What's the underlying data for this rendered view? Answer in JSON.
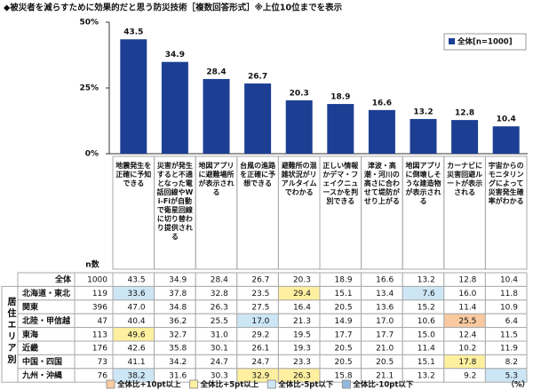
{
  "chart_data": {
    "type": "bar",
    "title": "◆被災者を減らすために効果的だと思う防災技術［複数回答形式］※上位10位までを表示",
    "categories": [
      "地震発生を正確に予知できる",
      "災害が発生すると不通となった電話回線やWi-Fiが自動で衛星回線に切り替わり提供される",
      "地図アプリに避難場所が表示される",
      "台風の進路を正確に予想できる",
      "避難所の混雑状況がリアルタイムでわかる",
      "正しい情報かデマ・フェイクニュースかを判別できる",
      "津波・高潮・河川の高さに合わせて堤防がせり上がる",
      "地図アプリに倒壊しそうな建造物が表示される",
      "カーナビに災害回避ルートが表示される",
      "宇宙からのモニタリングによって災害発生確率がわかる"
    ],
    "series": [
      {
        "name": "全体[n=1000]",
        "color": "#1c3f94",
        "values": [
          43.5,
          34.9,
          28.4,
          26.7,
          20.3,
          18.9,
          16.6,
          13.2,
          12.8,
          10.4
        ]
      }
    ],
    "ylim": [
      0,
      50
    ],
    "yticks": [
      {
        "value": 0,
        "label": "0%"
      },
      {
        "value": 25,
        "label": "25%"
      },
      {
        "value": 50,
        "label": "50%"
      }
    ],
    "legend": "top-right"
  },
  "table": {
    "n_header": "n数",
    "group_label": "居住エリア別",
    "unit": "（%）",
    "legend": [
      {
        "label": "全体比+10pt以上",
        "color": "#f9c9a0"
      },
      {
        "label": "全体比+5pt以上",
        "color": "#fff0a0"
      },
      {
        "label": "全体比-5pt以下",
        "color": "#cde6f6"
      },
      {
        "label": "全体比-10pt以下",
        "color": "#8fb8e0"
      }
    ],
    "rows": [
      {
        "label": "全体",
        "n": 1000,
        "values": [
          "43.5",
          "34.9",
          "28.4",
          "26.7",
          "20.3",
          "18.9",
          "16.6",
          "13.2",
          "12.8",
          "10.4"
        ],
        "colors": [
          null,
          null,
          null,
          null,
          null,
          null,
          null,
          null,
          null,
          null
        ]
      },
      {
        "label": "北海道・東北",
        "n": 119,
        "values": [
          "33.6",
          "37.8",
          "32.8",
          "23.5",
          "29.4",
          "15.1",
          "13.4",
          "7.6",
          "16.0",
          "11.8"
        ],
        "colors": [
          "#cde6f6",
          null,
          null,
          null,
          "#fff0a0",
          null,
          null,
          "#cde6f6",
          null,
          null
        ]
      },
      {
        "label": "関東",
        "n": 396,
        "values": [
          "47.0",
          "34.8",
          "26.3",
          "27.5",
          "16.4",
          "20.5",
          "13.6",
          "15.2",
          "11.4",
          "10.9"
        ],
        "colors": [
          null,
          null,
          null,
          null,
          null,
          null,
          null,
          null,
          null,
          null
        ]
      },
      {
        "label": "北陸・甲信越",
        "n": 47,
        "values": [
          "40.4",
          "36.2",
          "25.5",
          "17.0",
          "21.3",
          "14.9",
          "17.0",
          "10.6",
          "25.5",
          "6.4"
        ],
        "colors": [
          null,
          null,
          null,
          "#cde6f6",
          null,
          null,
          null,
          null,
          "#f9c9a0",
          null
        ]
      },
      {
        "label": "東海",
        "n": 113,
        "values": [
          "49.6",
          "32.7",
          "31.0",
          "29.2",
          "19.5",
          "17.7",
          "17.7",
          "15.0",
          "12.4",
          "11.5"
        ],
        "colors": [
          "#fff0a0",
          null,
          null,
          null,
          null,
          null,
          null,
          null,
          null,
          null
        ]
      },
      {
        "label": "近畿",
        "n": 176,
        "values": [
          "42.6",
          "35.8",
          "30.1",
          "26.1",
          "19.3",
          "20.5",
          "21.0",
          "11.4",
          "10.2",
          "11.9"
        ],
        "colors": [
          null,
          null,
          null,
          null,
          null,
          null,
          null,
          null,
          null,
          null
        ]
      },
      {
        "label": "中国・四国",
        "n": 73,
        "values": [
          "41.1",
          "34.2",
          "24.7",
          "24.7",
          "23.3",
          "20.5",
          "20.5",
          "15.1",
          "17.8",
          "8.2"
        ],
        "colors": [
          null,
          null,
          null,
          null,
          null,
          null,
          null,
          null,
          "#fff0a0",
          null
        ]
      },
      {
        "label": "九州・沖縄",
        "n": 76,
        "values": [
          "38.2",
          "31.6",
          "30.3",
          "32.9",
          "26.3",
          "15.8",
          "21.1",
          "13.2",
          "9.2",
          "5.3"
        ],
        "colors": [
          "#cde6f6",
          null,
          null,
          "#fff0a0",
          "#fff0a0",
          null,
          null,
          null,
          null,
          "#cde6f6"
        ]
      }
    ]
  }
}
